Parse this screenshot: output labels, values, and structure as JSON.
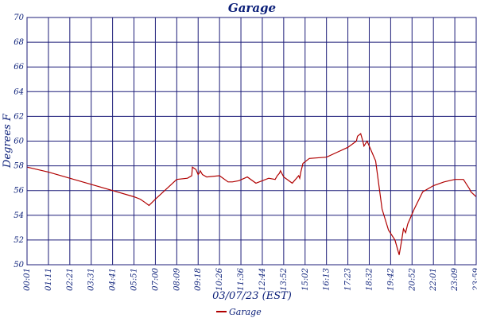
{
  "chart_data": {
    "type": "line",
    "title": "Garage",
    "xlabel": "03/07/23 (EST)",
    "ylabel": "Degrees F",
    "ylim": [
      50,
      70
    ],
    "yticks": [
      50,
      52,
      54,
      56,
      58,
      60,
      62,
      64,
      66,
      68,
      70
    ],
    "xticks": [
      "00:01",
      "01:11",
      "02:21",
      "03:31",
      "04:41",
      "05:51",
      "07:00",
      "08:09",
      "09:18",
      "10:26",
      "11:36",
      "12:44",
      "13:52",
      "15:02",
      "16:13",
      "17:23",
      "18:32",
      "19:42",
      "20:52",
      "22:01",
      "23:09",
      "23:59"
    ],
    "grid": true,
    "legend_position": "bottom-center",
    "colors": {
      "series": "#b00000",
      "grid": "#1c1c78",
      "text": "#0a1e78"
    },
    "series": [
      {
        "name": "Garage",
        "x": [
          0,
          1,
          2,
          3,
          4,
          5,
          5.3,
          5.55,
          5.7,
          6.0,
          7.0,
          7.5,
          7.7,
          7.73,
          7.9,
          8.0,
          8.05,
          8.1,
          8.2,
          8.4,
          9.0,
          9.4,
          9.6,
          9.9,
          10.3,
          10.7,
          11.3,
          11.6,
          11.7,
          11.8,
          11.85,
          12.0,
          12.4,
          12.7,
          12.75,
          12.8,
          12.9,
          13.2,
          14.0,
          14.5,
          15.0,
          15.4,
          15.45,
          15.6,
          15.7,
          15.75,
          15.9,
          16.3,
          16.6,
          16.9,
          17.2,
          17.4,
          17.5,
          17.6,
          17.7,
          17.8,
          18.1,
          18.5,
          19.0,
          19.5,
          20.0,
          20.4,
          20.7,
          20.75,
          21
        ],
        "values": [
          57.9,
          57.5,
          57.0,
          56.5,
          56.0,
          55.5,
          55.3,
          55.0,
          54.8,
          55.3,
          56.9,
          57.0,
          57.2,
          57.9,
          57.7,
          57.3,
          57.4,
          57.6,
          57.3,
          57.1,
          57.2,
          56.7,
          56.7,
          56.8,
          57.1,
          56.6,
          57.0,
          56.9,
          57.2,
          57.4,
          57.6,
          57.1,
          56.6,
          57.2,
          57.0,
          57.5,
          58.2,
          58.6,
          58.7,
          59.1,
          59.5,
          60.0,
          60.4,
          60.6,
          60.0,
          59.6,
          60.0,
          58.4,
          54.5,
          52.8,
          52.0,
          50.8,
          51.8,
          52.9,
          52.6,
          53.3,
          54.5,
          55.9,
          56.4,
          56.7,
          56.9,
          56.9,
          56.1,
          55.9,
          55.5
        ]
      }
    ]
  }
}
